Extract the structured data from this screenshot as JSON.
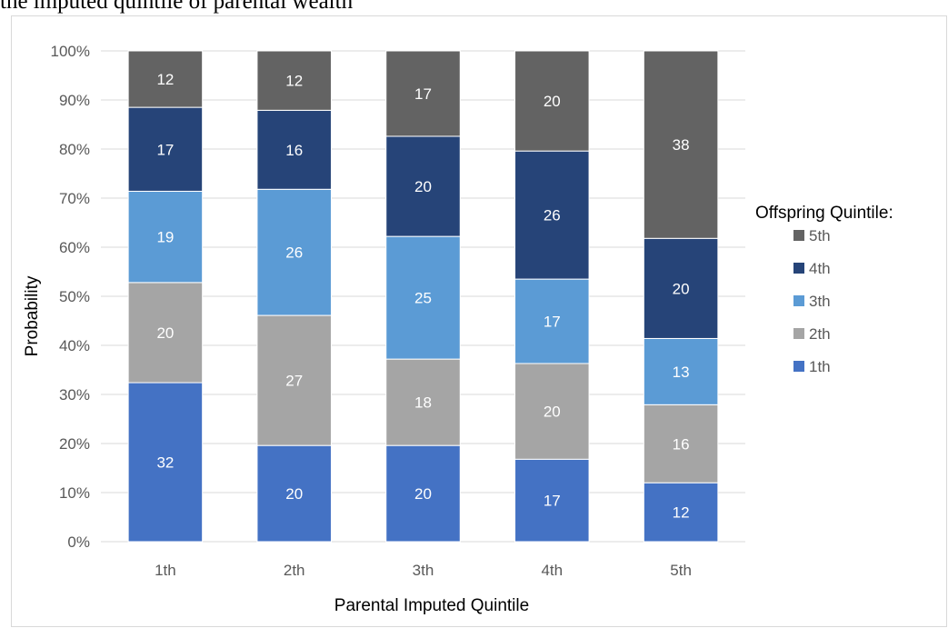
{
  "caption": "the imputed quintile of parental wealth",
  "chart_data": {
    "type": "bar",
    "stacked": true,
    "categories": [
      "1th",
      "2th",
      "3th",
      "4th",
      "5th"
    ],
    "xlabel": "Parental Imputed Quintile",
    "ylabel": "Probability",
    "ylim": [
      0,
      100
    ],
    "y_ticks": [
      "0%",
      "10%",
      "20%",
      "30%",
      "40%",
      "50%",
      "60%",
      "70%",
      "80%",
      "90%",
      "100%"
    ],
    "grid": true,
    "legend_title": "Offspring Quintile:",
    "legend_position": "right",
    "series": [
      {
        "name": "1th",
        "color": "#4472c4",
        "values": [
          32.4,
          19.6,
          19.6,
          16.8,
          12.0
        ]
      },
      {
        "name": "2th",
        "color": "#a5a5a5",
        "values": [
          20.4,
          26.5,
          17.6,
          19.5,
          15.9
        ]
      },
      {
        "name": "3th",
        "color": "#5b9bd5",
        "values": [
          18.6,
          25.7,
          25.0,
          17.2,
          13.5
        ]
      },
      {
        "name": "4th",
        "color": "#264478",
        "values": [
          17.1,
          16.1,
          20.4,
          26.1,
          20.4
        ]
      },
      {
        "name": "5th",
        "color": "#636363",
        "values": [
          11.5,
          12.1,
          17.4,
          20.4,
          38.2
        ]
      }
    ],
    "labels": [
      [
        "32",
        "20",
        "20",
        "17",
        "12"
      ],
      [
        "20",
        "27",
        "18",
        "20",
        "16"
      ],
      [
        "19",
        "26",
        "25",
        "17",
        "13"
      ],
      [
        "17",
        "16",
        "20",
        "26",
        "20"
      ],
      [
        "12",
        "12",
        "17",
        "20",
        "38"
      ]
    ]
  }
}
